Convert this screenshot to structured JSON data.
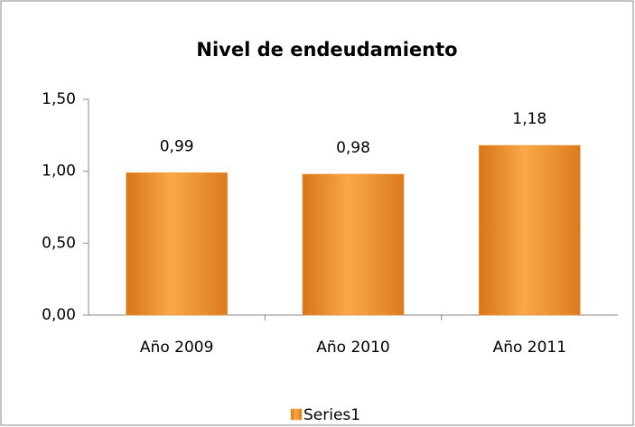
{
  "chart_data": {
    "type": "bar",
    "title": "Nivel de endeudamiento",
    "categories": [
      "Año 2009",
      "Año 2010",
      "Año 2011"
    ],
    "series": [
      {
        "name": "Series1",
        "color": "#f7a23e",
        "values": [
          0.99,
          0.98,
          1.18
        ],
        "value_labels": [
          "0,99",
          "0,98",
          "1,18"
        ]
      }
    ],
    "ylim": [
      0,
      1.5
    ],
    "yticks": [
      {
        "value": 0,
        "label": "0,00"
      },
      {
        "value": 0.5,
        "label": "0,50"
      },
      {
        "value": 1,
        "label": "1,00"
      },
      {
        "value": 1.5,
        "label": "1,50"
      }
    ],
    "grid": false,
    "legend": "bottom"
  }
}
